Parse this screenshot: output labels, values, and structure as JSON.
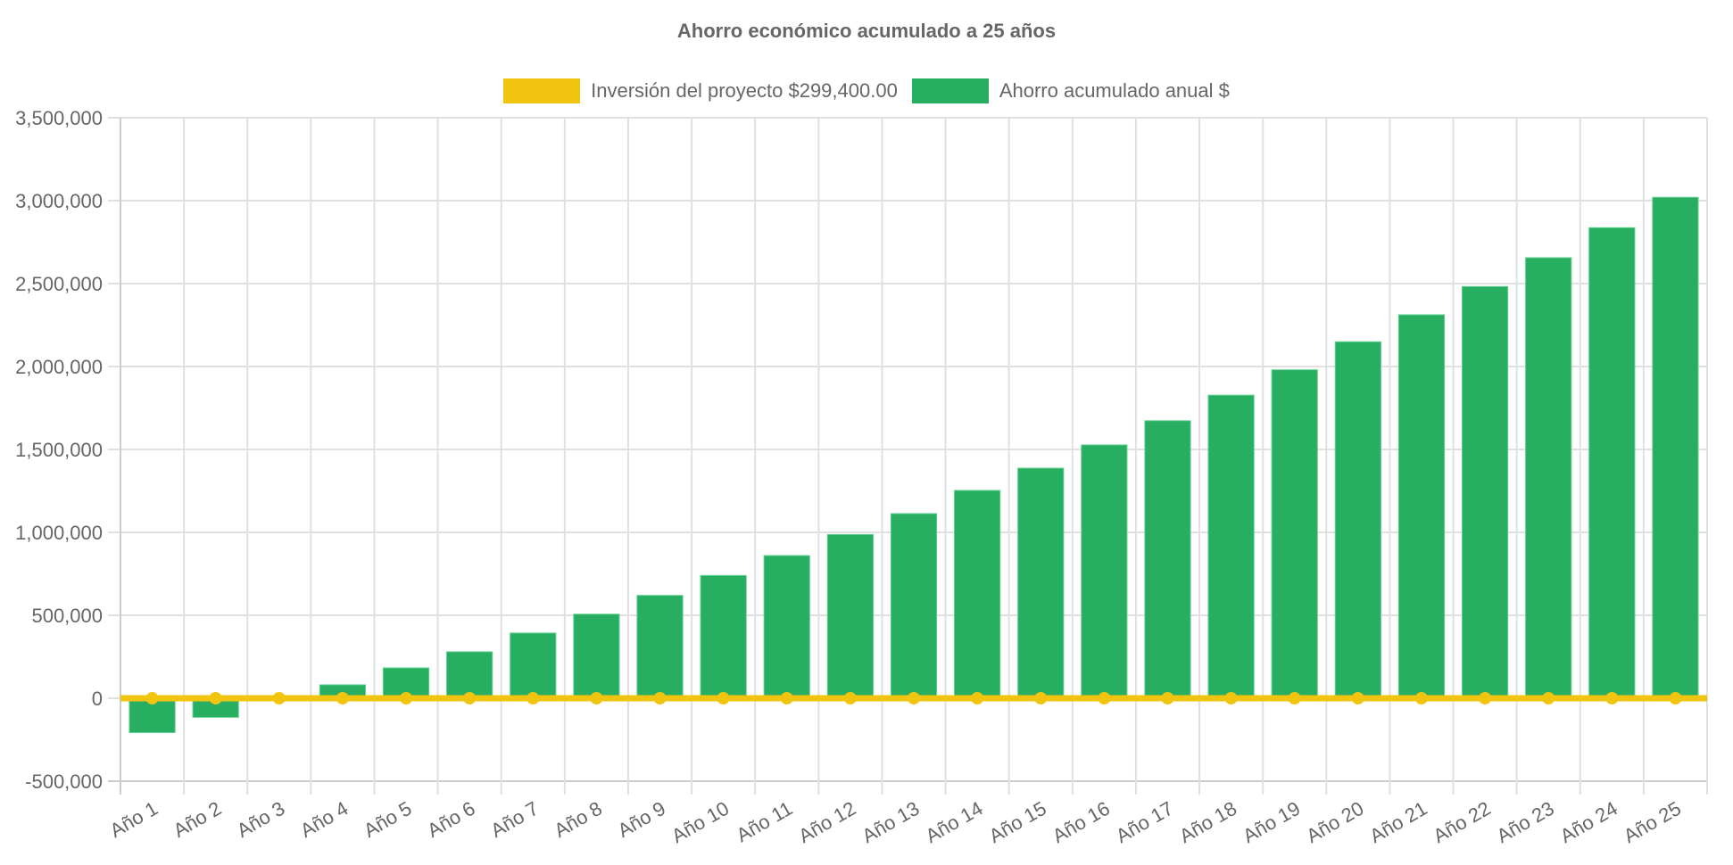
{
  "chart_data": {
    "type": "bar",
    "title": "Ahorro económico acumulado a 25 años",
    "legend_position": "top",
    "grid": true,
    "ylim": [
      -500000,
      3500000
    ],
    "yticks": [
      "3,500,000",
      "3,000,000",
      "2,500,000",
      "2,000,000",
      "1,500,000",
      "1,000,000",
      "500,000",
      "0",
      "-500,000"
    ],
    "ytick_values": [
      3500000,
      3000000,
      2500000,
      2000000,
      1500000,
      1000000,
      500000,
      0,
      -500000
    ],
    "categories": [
      "Año 1",
      "Año 2",
      "Año 3",
      "Año 4",
      "Año 5",
      "Año 6",
      "Año 7",
      "Año 8",
      "Año 9",
      "Año 10",
      "Año 11",
      "Año 12",
      "Año 13",
      "Año 14",
      "Año 15",
      "Año 16",
      "Año 17",
      "Año 18",
      "Año 19",
      "Año 20",
      "Año 21",
      "Año 22",
      "Año 23",
      "Año 24",
      "Año 25"
    ],
    "series": [
      {
        "name": "Inversión del proyecto $299,400.00",
        "type": "line",
        "color": "#f1c40f",
        "values": [
          0,
          0,
          0,
          0,
          0,
          0,
          0,
          0,
          0,
          0,
          0,
          0,
          0,
          0,
          0,
          0,
          0,
          0,
          0,
          0,
          0,
          0,
          0,
          0,
          0
        ]
      },
      {
        "name": "Ahorro acumulado anual $",
        "type": "bar",
        "color": "#27ae60",
        "values": [
          -207000,
          -115000,
          -15000,
          81000,
          183000,
          280000,
          393000,
          507000,
          620000,
          740000,
          860000,
          987000,
          1113000,
          1253000,
          1387000,
          1527000,
          1673000,
          1827000,
          1980000,
          2149000,
          2312000,
          2482000,
          2656000,
          2837000,
          3020000
        ]
      }
    ]
  }
}
